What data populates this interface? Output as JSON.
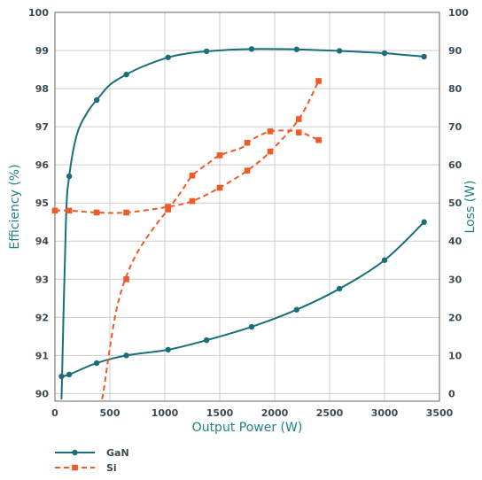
{
  "chart_data": {
    "type": "line",
    "xlabel": "Output Power (W)",
    "ylabel_left": "Efficiency (%)",
    "ylabel_right": "Loss (W)",
    "xlim": [
      0,
      3500
    ],
    "ylim_left": [
      89.8,
      100
    ],
    "ylim_right": [
      -2,
      100
    ],
    "x_ticks": [
      "0",
      "500",
      "1000",
      "1500",
      "2000",
      "2500",
      "3000",
      "3500"
    ],
    "y_left_ticks": [
      "90",
      "91",
      "92",
      "93",
      "94",
      "95",
      "96",
      "97",
      "98",
      "99",
      "100"
    ],
    "y_right_ticks": [
      "0",
      "10",
      "20",
      "30",
      "40",
      "50",
      "60",
      "70",
      "80",
      "90",
      "100"
    ],
    "grid": true,
    "legend_position": "bottom-left",
    "colors": {
      "GaN": "#1a6e78",
      "Si": "#ee5a28",
      "axis_title": "#1e7f88",
      "grid": "#cccccc"
    },
    "series": [
      {
        "name": "GaN",
        "kind": "efficiency",
        "axis": "left",
        "marker": "circle",
        "line_style": "solid",
        "x": [
          60,
          100,
          130,
          200,
          300,
          380,
          500,
          650,
          800,
          1030,
          1200,
          1380,
          1600,
          1790,
          2000,
          2200,
          2400,
          2590,
          2800,
          3000,
          3200,
          3360
        ],
        "y": [
          89.85,
          94.5,
          95.7,
          96.8,
          97.4,
          97.7,
          98.1,
          98.37,
          98.58,
          98.82,
          98.92,
          98.98,
          99.02,
          99.04,
          99.04,
          99.03,
          99.01,
          98.99,
          98.96,
          98.93,
          98.88,
          98.84
        ],
        "marker_x": [
          130,
          380,
          650,
          1030,
          1380,
          1790,
          2200,
          2590,
          3000,
          3360
        ],
        "marker_y": [
          95.7,
          97.7,
          98.37,
          98.82,
          98.98,
          99.04,
          99.03,
          98.99,
          98.93,
          98.84
        ]
      },
      {
        "name": "GaN",
        "kind": "loss",
        "axis": "right",
        "marker": "circle",
        "line_style": "solid",
        "x": [
          60,
          130,
          380,
          650,
          1030,
          1380,
          1790,
          2200,
          2590,
          3000,
          3360
        ],
        "y": [
          4.5,
          5,
          8,
          10,
          11.5,
          14,
          17.5,
          22,
          27.5,
          35,
          45
        ],
        "marker_x": [
          60,
          130,
          380,
          650,
          1030,
          1380,
          1790,
          2200,
          2590,
          3000,
          3360
        ],
        "marker_y": [
          4.5,
          5,
          8,
          10,
          11.5,
          14,
          17.5,
          22,
          27.5,
          35,
          45
        ]
      },
      {
        "name": "Si",
        "kind": "efficiency",
        "axis": "left",
        "marker": "square",
        "line_style": "dashed",
        "x": [
          430,
          450,
          500,
          560,
          640,
          750,
          900,
          1030,
          1150,
          1250,
          1400,
          1500,
          1700,
          1750,
          1850,
          1960,
          2100,
          2200,
          2270,
          2400
        ],
        "y": [
          89.85,
          90.2,
          91.2,
          92.2,
          93.0,
          93.7,
          94.35,
          94.83,
          95.3,
          95.72,
          96.05,
          96.25,
          96.45,
          96.58,
          96.75,
          96.88,
          96.9,
          96.88,
          96.82,
          96.65
        ],
        "marker_x": [
          650,
          1030,
          1250,
          1500,
          1750,
          1960,
          2220,
          2400
        ],
        "marker_y": [
          93.0,
          94.83,
          95.72,
          96.25,
          96.58,
          96.88,
          96.85,
          96.65
        ]
      },
      {
        "name": "Si",
        "kind": "loss",
        "axis": "right",
        "marker": "square",
        "line_style": "dashed",
        "x": [
          0,
          130,
          380,
          650,
          1030,
          1250,
          1500,
          1750,
          1960,
          2220,
          2400
        ],
        "y": [
          48,
          48,
          47.5,
          47.5,
          49,
          50.5,
          54,
          58.5,
          63.5,
          72,
          82
        ],
        "marker_x": [
          0,
          130,
          380,
          650,
          1030,
          1250,
          1500,
          1750,
          1960,
          2220,
          2400
        ],
        "marker_y": [
          48,
          48,
          47.5,
          47.5,
          49,
          50.5,
          54,
          58.5,
          63.5,
          72,
          82
        ]
      }
    ],
    "legend": [
      {
        "label": "GaN",
        "marker": "circle",
        "line_style": "solid"
      },
      {
        "label": "Si",
        "marker": "square",
        "line_style": "dashed"
      }
    ]
  }
}
